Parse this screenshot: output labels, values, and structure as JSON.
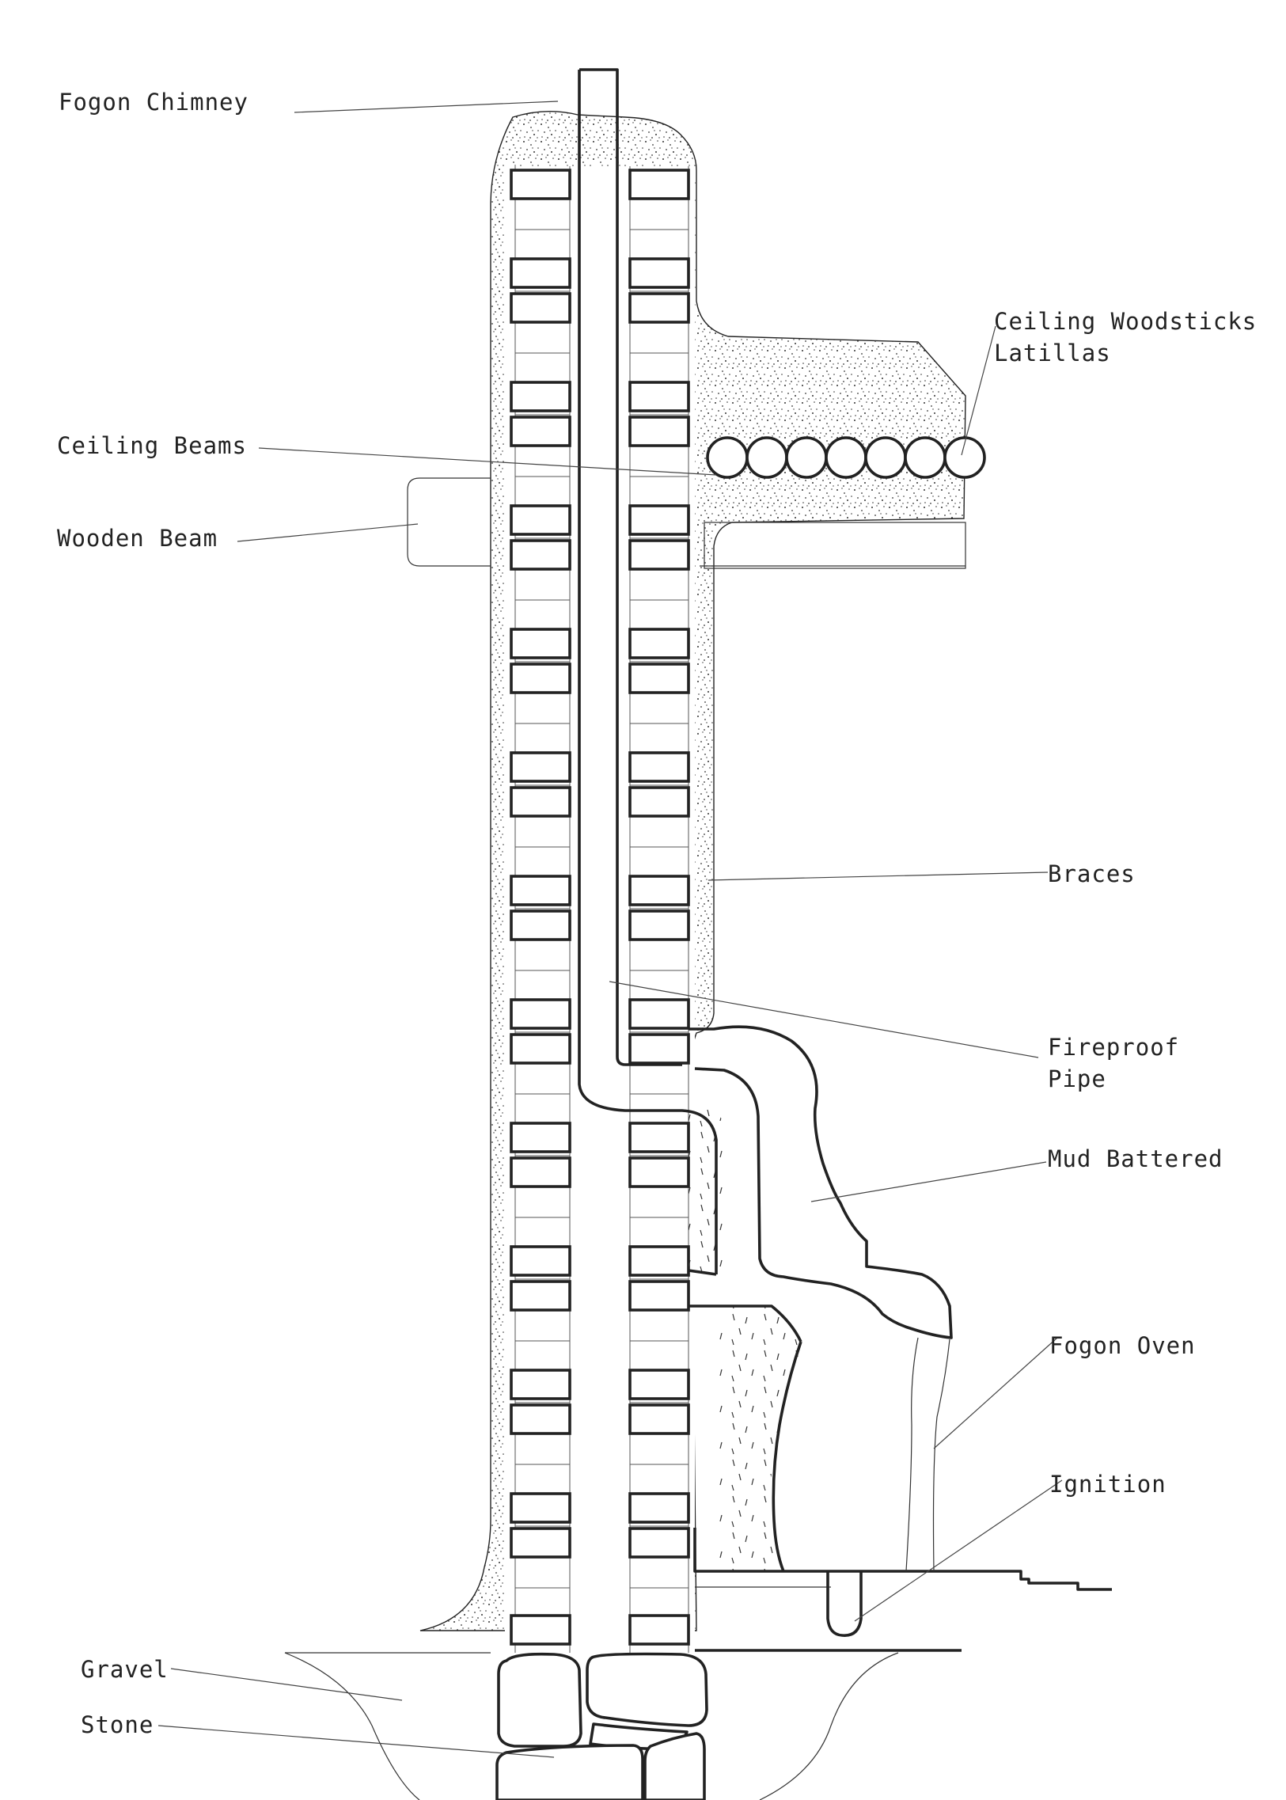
{
  "labels": {
    "chimney": "Fogon Chimney",
    "woodsticks_line1": "Ceiling Woodsticks",
    "woodsticks_line2": "Latillas",
    "ceiling_beams": "Ceiling Beams",
    "wooden_beam": "Wooden Beam",
    "braces": "Braces",
    "fireproof_line1": "Fireproof",
    "fireproof_line2": "Pipe",
    "mud_battered": "Mud Battered",
    "fogon_oven": "Fogon Oven",
    "ignition": "Ignition",
    "gravel": "Gravel",
    "stone": "Stone"
  },
  "colors": {
    "ink": "#222222",
    "paper": "#ffffff",
    "stipple": "#333333"
  }
}
